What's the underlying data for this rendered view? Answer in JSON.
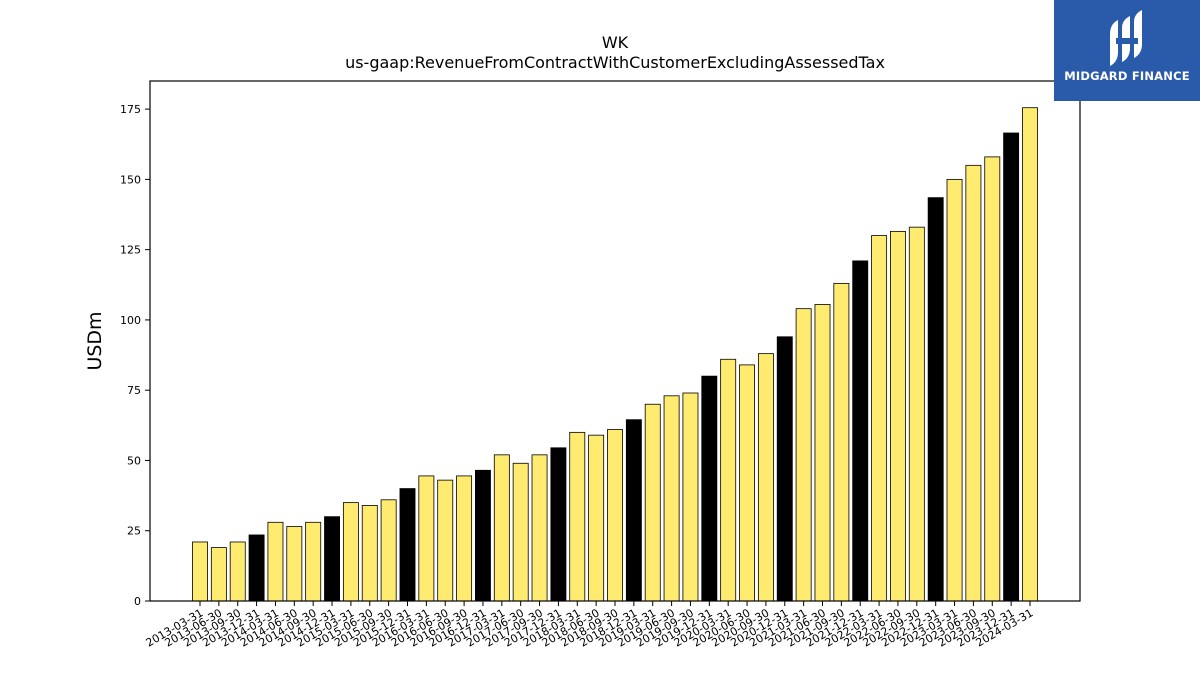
{
  "chart_data": {
    "type": "bar",
    "title": "WK",
    "subtitle": "us-gaap:RevenueFromContractWithCustomerExcludingAssessedTax",
    "xlabel": "",
    "ylabel": "USDm",
    "ylim": [
      0,
      185
    ],
    "yticks": [
      0,
      25,
      50,
      75,
      100,
      125,
      150,
      175
    ],
    "colors": {
      "quarter": "#ffeb70",
      "year_end": "#000000",
      "edge": "#000000"
    },
    "categories": [
      "2013-03-31",
      "2013-06-30",
      "2013-09-30",
      "2013-12-31",
      "2014-03-31",
      "2014-06-30",
      "2014-09-30",
      "2014-12-31",
      "2015-03-31",
      "2015-06-30",
      "2015-09-30",
      "2015-12-31",
      "2016-03-31",
      "2016-06-30",
      "2016-09-30",
      "2016-12-31",
      "2017-03-31",
      "2017-06-30",
      "2017-09-30",
      "2017-12-31",
      "2018-03-31",
      "2018-06-30",
      "2018-09-30",
      "2018-12-31",
      "2019-03-31",
      "2019-06-30",
      "2019-09-30",
      "2019-12-31",
      "2020-03-31",
      "2020-06-30",
      "2020-09-30",
      "2020-12-31",
      "2021-03-31",
      "2021-06-30",
      "2021-09-30",
      "2021-12-31",
      "2022-03-31",
      "2022-06-30",
      "2022-09-30",
      "2022-12-31",
      "2023-03-31",
      "2023-06-30",
      "2023-09-30",
      "2023-12-31",
      "2024-03-31"
    ],
    "values": [
      21,
      19,
      21,
      23.5,
      28,
      26.5,
      28,
      30,
      35,
      34,
      36,
      40,
      44.5,
      43,
      44.5,
      46.5,
      52,
      49,
      52,
      54.5,
      60,
      59,
      61,
      64.5,
      70,
      73,
      74,
      80,
      86,
      84,
      88,
      94,
      104,
      105.5,
      113,
      121,
      130,
      131.5,
      133,
      143.5,
      150,
      155,
      158,
      166.5,
      175.5
    ],
    "year_end": [
      false,
      false,
      false,
      true,
      false,
      false,
      false,
      true,
      false,
      false,
      false,
      true,
      false,
      false,
      false,
      true,
      false,
      false,
      false,
      true,
      false,
      false,
      false,
      true,
      false,
      false,
      false,
      true,
      false,
      false,
      false,
      true,
      false,
      false,
      false,
      true,
      false,
      false,
      false,
      true,
      false,
      false,
      false,
      true,
      false
    ]
  },
  "logo": {
    "text": "MIDGARD FINANCE"
  }
}
